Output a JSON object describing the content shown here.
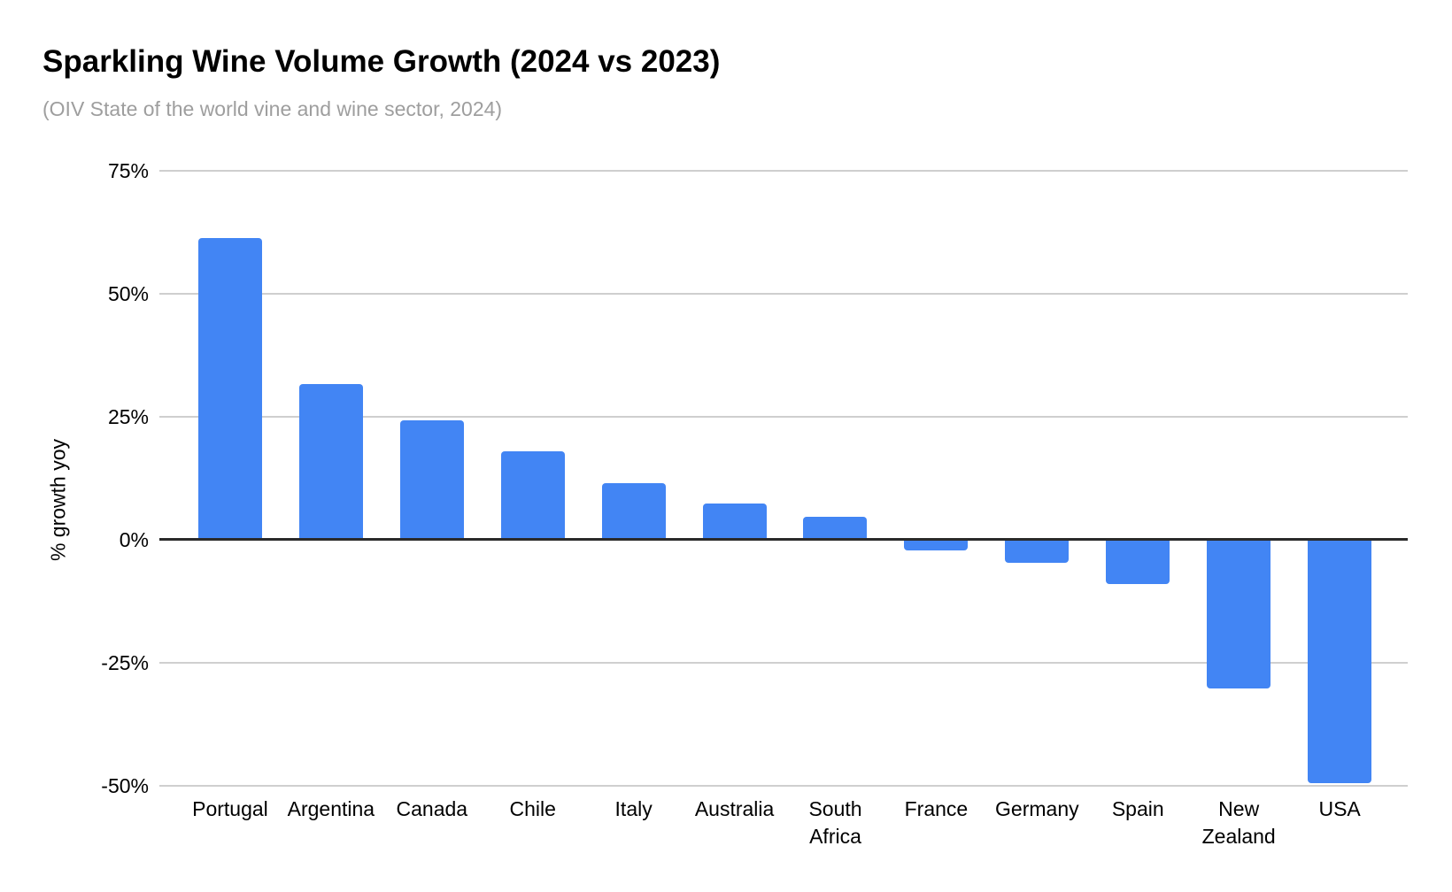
{
  "chart_data": {
    "type": "bar",
    "title": "Sparkling Wine Volume Growth (2024 vs 2023)",
    "subtitle": "(OIV State of the world vine and wine sector, 2024)",
    "ylabel": "% growth yoy",
    "xlabel": "",
    "categories": [
      "Portugal",
      "Argentina",
      "Canada",
      "Chile",
      "Italy",
      "Australia",
      "South Africa",
      "France",
      "Germany",
      "Spain",
      "New Zealand",
      "USA"
    ],
    "values": [
      61.4,
      31.7,
      24.3,
      18.0,
      11.6,
      7.4,
      4.7,
      -2.2,
      -4.7,
      -9.0,
      -30.3,
      -49.5
    ],
    "value_unit": "%",
    "ylim": [
      -50,
      75
    ],
    "yticks": [
      75,
      50,
      25,
      0,
      -25,
      -50
    ],
    "ytick_labels": [
      "75%",
      "50%",
      "25%",
      "0%",
      "-25%",
      "-50%"
    ],
    "grid": true,
    "legend": "none",
    "bar_color": "#4285f4"
  },
  "colors": {
    "background": "#ffffff",
    "bar": "#4285f4",
    "gridline": "#cfcfcf",
    "zero_axis": "#2a2a2a",
    "title_text": "#000000",
    "subtitle_text": "#9e9e9e",
    "tick_text": "#000000"
  }
}
